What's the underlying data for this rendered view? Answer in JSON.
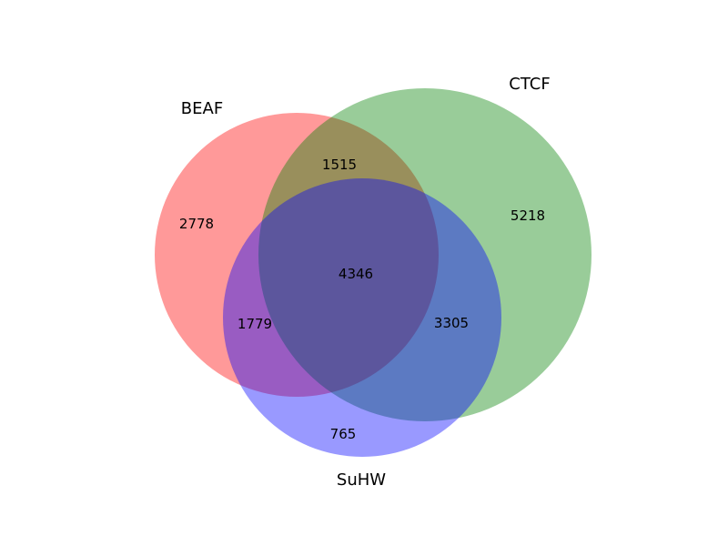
{
  "diagram": {
    "type": "venn3",
    "sets": [
      {
        "key": "beaf",
        "label": "BEAF",
        "color": "#ff0000"
      },
      {
        "key": "ctcf",
        "label": "CTCF",
        "color": "#008000"
      },
      {
        "key": "suhw",
        "label": "SuHW",
        "color": "#0000ff"
      }
    ],
    "fill_opacity": 0.4,
    "regions": {
      "beaf_only": "2778",
      "ctcf_only": "5218",
      "suhw_only": "765",
      "beaf_ctcf": "1515",
      "beaf_suhw": "1779",
      "ctcf_suhw": "3305",
      "all_three": "4346"
    }
  }
}
